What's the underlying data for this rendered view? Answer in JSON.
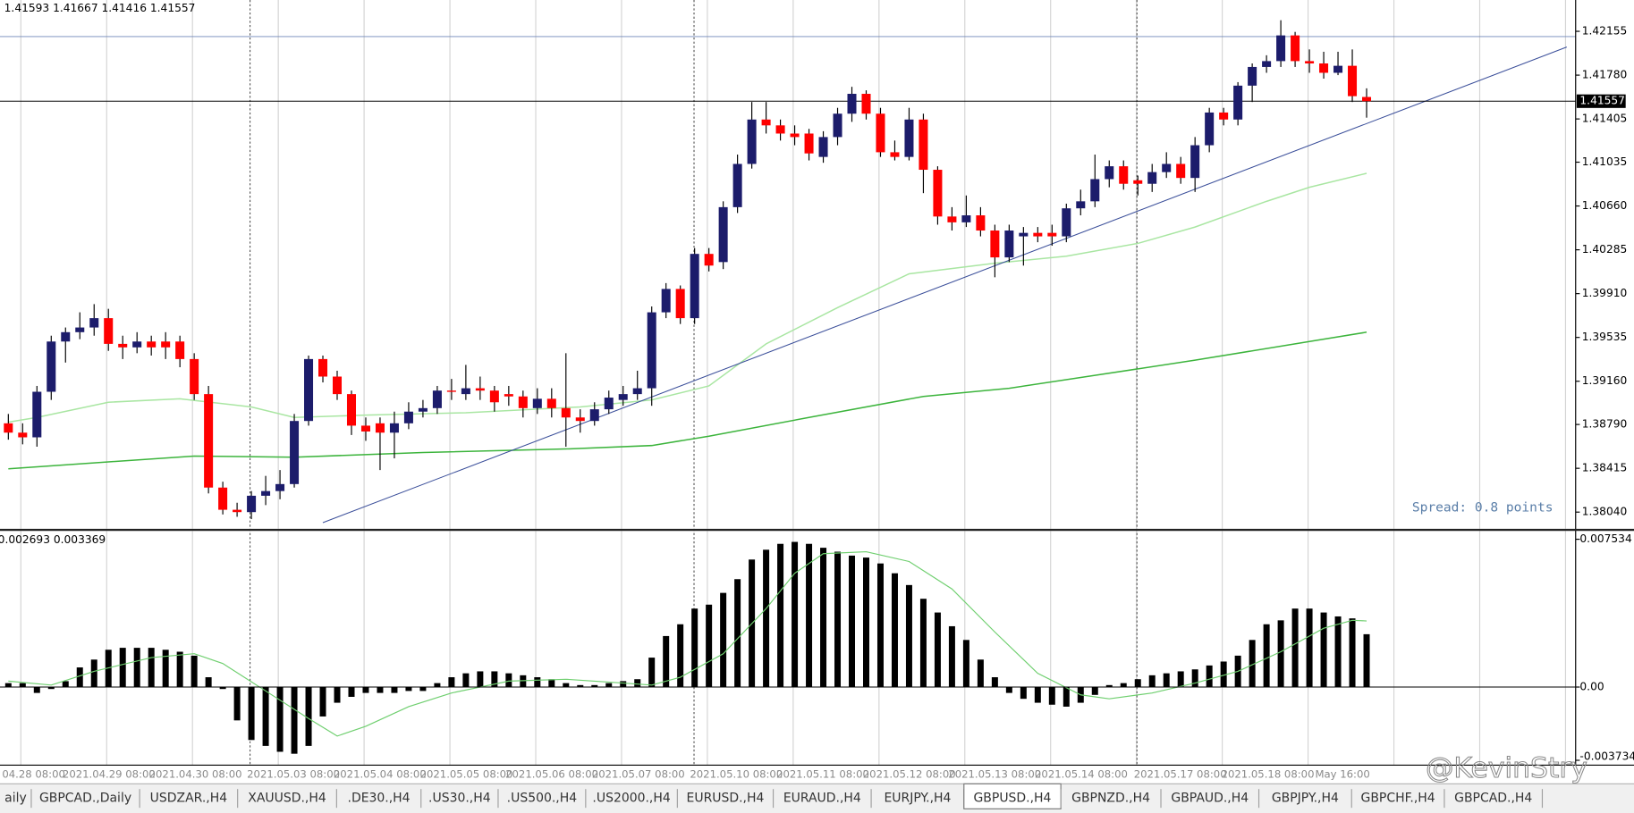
{
  "chart_data": {
    "type": "candlestick",
    "symbol_ohlc": "1.41593 1.41667 1.41416 1.41557",
    "up_color": "#1c1c6b",
    "down_color": "#ff0000",
    "open": [
      1.388,
      1.3872,
      1.3868,
      1.3907,
      1.395,
      1.3958,
      1.3962,
      1.397,
      1.3948,
      1.3945,
      1.395,
      1.395,
      1.395,
      1.3935,
      1.3905,
      1.3825,
      1.3806,
      1.3804,
      1.3818,
      1.3822,
      1.3828,
      1.3882,
      1.3935,
      1.392,
      1.3905,
      1.3878,
      1.388,
      1.3872,
      1.388,
      1.389,
      1.3893,
      1.3908,
      1.3905,
      1.391,
      1.3908,
      1.3905,
      1.3903,
      1.3893,
      1.3901,
      1.3893,
      1.3885,
      1.3882,
      1.3892,
      1.39,
      1.3905,
      1.391,
      1.3975,
      1.3995,
      1.397,
      1.4025,
      1.4018,
      1.4065,
      1.4102,
      1.414,
      1.4135,
      1.4128,
      1.4128,
      1.4108,
      1.4125,
      1.4145,
      1.4162,
      1.4145,
      1.4112,
      1.4108,
      1.414,
      1.4097,
      1.4057,
      1.4052,
      1.4058,
      1.4045,
      1.4022,
      1.404,
      1.4043,
      1.4043,
      1.404,
      1.4064,
      1.407,
      1.4089,
      1.41,
      1.4088,
      1.4085,
      1.4095,
      1.4102,
      1.409,
      1.4118,
      1.4146,
      1.414,
      1.4169,
      1.4185,
      1.419,
      1.4212,
      1.419,
      1.4188,
      1.418,
      1.4186,
      1.41593
    ],
    "high": [
      1.3888,
      1.388,
      1.3912,
      1.3955,
      1.3962,
      1.3975,
      1.3982,
      1.3978,
      1.3955,
      1.3958,
      1.3955,
      1.3958,
      1.3955,
      1.394,
      1.3912,
      1.383,
      1.3812,
      1.3822,
      1.3835,
      1.384,
      1.3888,
      1.3938,
      1.3938,
      1.3925,
      1.3908,
      1.3885,
      1.3885,
      1.389,
      1.3898,
      1.39,
      1.3912,
      1.3918,
      1.393,
      1.392,
      1.3912,
      1.3912,
      1.3908,
      1.391,
      1.391,
      1.394,
      1.3892,
      1.3898,
      1.3908,
      1.3912,
      1.3925,
      1.398,
      1.4,
      1.3998,
      1.403,
      1.403,
      1.407,
      1.411,
      1.4155,
      1.4155,
      1.414,
      1.4135,
      1.4132,
      1.413,
      1.415,
      1.4168,
      1.4165,
      1.415,
      1.4122,
      1.415,
      1.4145,
      1.41,
      1.4065,
      1.4075,
      1.4065,
      1.405,
      1.405,
      1.4048,
      1.4048,
      1.405,
      1.4068,
      1.408,
      1.411,
      1.4105,
      1.4105,
      1.4092,
      1.4102,
      1.4112,
      1.4108,
      1.4125,
      1.415,
      1.415,
      1.4172,
      1.4188,
      1.4195,
      1.4225,
      1.4215,
      1.42,
      1.4198,
      1.4198,
      1.42,
      1.41667
    ],
    "low": [
      1.3866,
      1.3862,
      1.386,
      1.39,
      1.3932,
      1.3952,
      1.3955,
      1.3942,
      1.3935,
      1.394,
      1.3938,
      1.3935,
      1.3928,
      1.39,
      1.382,
      1.3802,
      1.38,
      1.3798,
      1.381,
      1.3815,
      1.3825,
      1.3878,
      1.3915,
      1.39,
      1.387,
      1.3865,
      1.384,
      1.385,
      1.3875,
      1.3885,
      1.3888,
      1.39,
      1.39,
      1.39,
      1.389,
      1.3895,
      1.3885,
      1.3888,
      1.3885,
      1.386,
      1.3872,
      1.3878,
      1.3888,
      1.3895,
      1.39,
      1.3895,
      1.397,
      1.3965,
      1.3965,
      1.401,
      1.4012,
      1.406,
      1.4098,
      1.4128,
      1.4122,
      1.4118,
      1.4105,
      1.4103,
      1.4118,
      1.4138,
      1.414,
      1.4108,
      1.4105,
      1.4105,
      1.4077,
      1.405,
      1.4045,
      1.4048,
      1.404,
      1.4005,
      1.4018,
      1.4015,
      1.4035,
      1.4032,
      1.4035,
      1.4058,
      1.4065,
      1.4082,
      1.408,
      1.4075,
      1.4078,
      1.409,
      1.4085,
      1.4078,
      1.4112,
      1.4135,
      1.4135,
      1.4155,
      1.418,
      1.4185,
      1.4185,
      1.418,
      1.4175,
      1.4178,
      1.4155,
      1.41416
    ],
    "close": [
      1.3872,
      1.3868,
      1.3907,
      1.395,
      1.3958,
      1.3962,
      1.397,
      1.3948,
      1.3945,
      1.395,
      1.3945,
      1.3945,
      1.3935,
      1.3905,
      1.3825,
      1.3806,
      1.3804,
      1.3818,
      1.3822,
      1.3828,
      1.3882,
      1.3935,
      1.392,
      1.3905,
      1.3878,
      1.3873,
      1.3872,
      1.388,
      1.389,
      1.3893,
      1.3908,
      1.3907,
      1.391,
      1.3908,
      1.3898,
      1.3903,
      1.3893,
      1.3901,
      1.3893,
      1.3885,
      1.3882,
      1.3892,
      1.3902,
      1.3905,
      1.391,
      1.3975,
      1.3995,
      1.397,
      1.4025,
      1.4015,
      1.4065,
      1.4102,
      1.414,
      1.4135,
      1.4128,
      1.4125,
      1.4111,
      1.4125,
      1.4145,
      1.4162,
      1.4145,
      1.4112,
      1.4108,
      1.414,
      1.4097,
      1.4057,
      1.4052,
      1.4058,
      1.4045,
      1.4022,
      1.4045,
      1.4043,
      1.404,
      1.404,
      1.4064,
      1.407,
      1.4089,
      1.41,
      1.4085,
      1.4085,
      1.4095,
      1.4102,
      1.409,
      1.4118,
      1.4146,
      1.414,
      1.4169,
      1.4185,
      1.419,
      1.4212,
      1.419,
      1.4188,
      1.418,
      1.4186,
      1.416,
      1.41557
    ],
    "ylim": [
      1.37897,
      1.42423
    ],
    "yticks": [
      1.42155,
      {
        "value": 1.4178,
        "label": "1.41780"
      },
      1.41405,
      1.41035,
      {
        "value": 1.4066,
        "label": "1.40660"
      },
      1.40285,
      {
        "value": 1.3991,
        "label": "1.39910"
      },
      1.39535,
      {
        "value": 1.3916,
        "label": "1.39160"
      },
      {
        "value": 1.3879,
        "label": "1.38790"
      },
      1.38415,
      {
        "value": 1.3804,
        "label": "1.38040"
      }
    ],
    "current_price": 1.41557,
    "current_price_color": "#000000",
    "hline": 1.4211,
    "hline_color": "#6f86b8",
    "moving_averages": [
      {
        "color": "#a9e6a2",
        "x": [
          0,
          2,
          7,
          12,
          17,
          20,
          25,
          32,
          40,
          45,
          49,
          53,
          58,
          63,
          69,
          74,
          79,
          83,
          88,
          91,
          95
        ],
        "values": [
          1.3881,
          1.3885,
          1.3898,
          1.3901,
          1.3894,
          1.3885,
          1.3887,
          1.3889,
          1.3894,
          1.39,
          1.3912,
          1.3948,
          1.3979,
          1.4008,
          1.4017,
          1.4023,
          1.4034,
          1.4048,
          1.407,
          1.4082,
          1.4094
        ]
      },
      {
        "color": "#3cb43c",
        "x": [
          0,
          7,
          13,
          20,
          29,
          39,
          45,
          49,
          56,
          64,
          70,
          76,
          83,
          90,
          95
        ],
        "values": [
          1.3841,
          1.3847,
          1.3852,
          1.3851,
          1.3855,
          1.3858,
          1.3861,
          1.3869,
          1.3885,
          1.3903,
          1.391,
          1.3921,
          1.3934,
          1.3948,
          1.3958
        ]
      }
    ],
    "trendline": {
      "color": "#3b4f9a",
      "x": [
        22,
        109
      ],
      "values": [
        1.3795,
        1.4202
      ]
    },
    "spread_text": "Spread: 0.8 points",
    "x_labels": [
      "04.28 08:00",
      "2021.04.29 08:00",
      "2021.04.30 08:00",
      "2021.05.03 08:00",
      "2021.05.04 08:00",
      "2021.05.05 08:00",
      "2021.05.06 08:00",
      "2021.05.07 08:00",
      "2021.05.10 08:00",
      "2021.05.11 08:00",
      "2021.05.12 08:00",
      "2021.05.13 08:00",
      "2021.05.14 08:00",
      "2021.05.17 08:00",
      "2021.05.18 08:00",
      "May 16:00"
    ],
    "macd": {
      "values_label": "0.002693 0.003369",
      "color": "#000000",
      "histogram": [
        0.0002,
        0.0002,
        -0.0003,
        -0.0001,
        0.0003,
        0.001,
        0.0014,
        0.0019,
        0.002,
        0.002,
        0.002,
        0.0019,
        0.0018,
        0.0016,
        0.0005,
        -0.0001,
        -0.0017,
        -0.0027,
        -0.003,
        -0.0033,
        -0.0034,
        -0.003,
        -0.0015,
        -0.0008,
        -0.0005,
        -0.0003,
        -0.0003,
        -0.0003,
        -0.0002,
        -0.0002,
        0.0002,
        0.0005,
        0.0007,
        0.0008,
        0.0008,
        0.0007,
        0.0006,
        0.0005,
        0.0004,
        0.0002,
        0.0001,
        0.0001,
        0.0002,
        0.0003,
        0.0004,
        0.0015,
        0.0026,
        0.0032,
        0.004,
        0.0042,
        0.0048,
        0.0055,
        0.0065,
        0.007,
        0.0073,
        0.0074,
        0.0073,
        0.0071,
        0.0069,
        0.0067,
        0.0066,
        0.0063,
        0.0058,
        0.0052,
        0.0045,
        0.0038,
        0.0031,
        0.0024,
        0.0014,
        0.0005,
        -0.0003,
        -0.0006,
        -0.0008,
        -0.0009,
        -0.001,
        -0.0008,
        -0.0004,
        0.0001,
        0.0002,
        0.0004,
        0.0006,
        0.0007,
        0.0008,
        0.0009,
        0.0011,
        0.0013,
        0.0016,
        0.0024,
        0.0032,
        0.0034,
        0.004,
        0.004,
        0.0038,
        0.0036,
        0.0035,
        0.002693
      ],
      "signal": {
        "color": "#6fcf6f",
        "x": [
          0,
          3,
          6,
          10,
          13,
          15,
          18,
          21,
          23,
          25,
          28,
          31,
          35,
          39,
          43,
          45,
          47,
          50,
          53,
          55,
          57,
          60,
          63,
          66,
          69,
          72,
          75,
          77,
          80,
          83,
          86,
          89,
          92,
          94,
          95
        ],
        "values": [
          0.0003,
          0.0001,
          0.0008,
          0.0015,
          0.0017,
          0.0012,
          -0.0002,
          -0.0016,
          -0.0025,
          -0.002,
          -0.001,
          -0.0003,
          0.0003,
          0.0004,
          0.0002,
          0.0001,
          0.0005,
          0.0017,
          0.004,
          0.0058,
          0.0068,
          0.0069,
          0.0064,
          0.005,
          0.0028,
          0.0007,
          -0.0004,
          -0.0006,
          -0.0003,
          0.0002,
          0.0008,
          0.0018,
          0.003,
          0.0034,
          0.003369
        ]
      },
      "ylim": [
        -0.00398,
        0.00796
      ],
      "yticks": [
        0.007534,
        {
          "value": 0,
          "label": "0.00"
        },
        -0.003734
      ]
    }
  },
  "tabs": [
    "aily",
    "GBPCAD.,Daily",
    "USDZAR.,H4",
    "XAUUSD.,H4",
    ".DE30.,H4",
    ".US30.,H4",
    ".US500.,H4",
    ".US2000.,H4",
    "EURUSD.,H4",
    "EURAUD.,H4",
    "EURJPY.,H4",
    "GBPUSD.,H4",
    "GBPNZD.,H4",
    "GBPAUD.,H4",
    "GBPJPY.,H4",
    "GBPCHF.,H4",
    "GBPCAD.,H4"
  ],
  "active_tab": 11,
  "watermark": "@KevinStry"
}
